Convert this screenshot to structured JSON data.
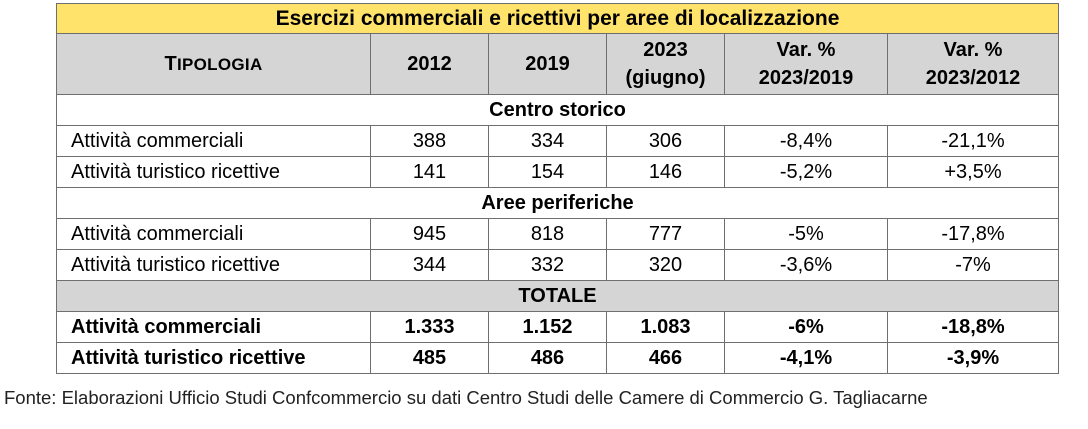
{
  "title": "Esercizi commerciali e ricettivi per aree di localizzazione",
  "headers": {
    "tipologia": "Tipologia",
    "y2012": "2012",
    "y2019": "2019",
    "y2023_line1": "2023",
    "y2023_line2": "(giugno)",
    "var1_line1": "Var. %",
    "var1_line2": "2023/2019",
    "var2_line1": "Var. %",
    "var2_line2": "2023/2012"
  },
  "sections": [
    {
      "name": "Centro storico",
      "rows": [
        {
          "label": "Attività commerciali",
          "v2012": "388",
          "v2019": "334",
          "v2023": "306",
          "var1": "-8,4%",
          "var2": "-21,1%"
        },
        {
          "label": "Attività turistico ricettive",
          "v2012": "141",
          "v2019": "154",
          "v2023": "146",
          "var1": "-5,2%",
          "var2": "+3,5%"
        }
      ]
    },
    {
      "name": "Aree periferiche",
      "rows": [
        {
          "label": "Attività commerciali",
          "v2012": "945",
          "v2019": "818",
          "v2023": "777",
          "var1": "-5%",
          "var2": "-17,8%"
        },
        {
          "label": "Attività turistico ricettive",
          "v2012": "344",
          "v2019": "332",
          "v2023": "320",
          "var1": "-3,6%",
          "var2": "-7%"
        }
      ]
    },
    {
      "name": "TOTALE",
      "rows": [
        {
          "label": "Attività commerciali",
          "v2012": "1.333",
          "v2019": "1.152",
          "v2023": "1.083",
          "var1": "-6%",
          "var2": "-18,8%"
        },
        {
          "label": "Attività turistico ricettive",
          "v2012": "485",
          "v2019": "486",
          "v2023": "466",
          "var1": "-4,1%",
          "var2": "-3,9%"
        }
      ]
    }
  ],
  "source": "Fonte: Elaborazioni Ufficio Studi Confcommercio su dati Centro Studi delle Camere di Commercio G. Tagliacarne",
  "colors": {
    "title_bg": "#ffe36b",
    "header_bg": "#d5d5d5",
    "border": "#6f6f6f"
  }
}
